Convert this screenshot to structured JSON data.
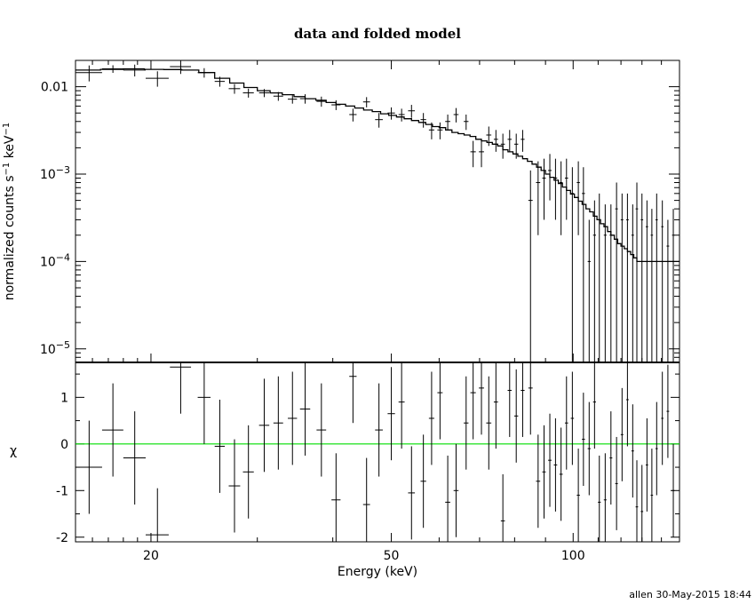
{
  "footer_text": "allen 30-May-2015 18:44",
  "chart_data": [
    {
      "type": "line",
      "panel": "top",
      "title": "data and folded model",
      "ylabel": "normalized counts s^-1 keV^-1",
      "yscale": "log",
      "xscale": "log",
      "xlim": [
        15,
        150
      ],
      "ylim": [
        7e-06,
        0.02
      ],
      "ytick_labels": [
        {
          "value": 0.01,
          "base": "0.01",
          "exp": ""
        },
        {
          "value": 0.001,
          "base": "10",
          "exp": "−3"
        },
        {
          "value": 0.0001,
          "base": "10",
          "exp": "−4"
        },
        {
          "value": 1e-05,
          "base": "10",
          "exp": "−5"
        }
      ],
      "data_points": [
        [
          15.8,
          0.0145,
          0.8,
          0.003
        ],
        [
          17.3,
          0.016,
          0.7,
          0.0016
        ],
        [
          18.8,
          0.0155,
          0.8,
          0.0024
        ],
        [
          20.5,
          0.0125,
          0.9,
          0.0025
        ],
        [
          22.4,
          0.017,
          0.9,
          0.003
        ],
        [
          24.5,
          0.0145,
          0.6,
          0.0018
        ],
        [
          26.0,
          0.0115,
          0.5,
          0.0015
        ],
        [
          27.5,
          0.0095,
          0.6,
          0.0012
        ],
        [
          29.0,
          0.0085,
          0.6,
          0.001
        ],
        [
          30.8,
          0.0085,
          0.6,
          0.0009
        ],
        [
          32.5,
          0.0078,
          0.6,
          0.0009
        ],
        [
          34.3,
          0.0072,
          0.6,
          0.0008
        ],
        [
          36.0,
          0.0073,
          0.7,
          0.0009
        ],
        [
          38.3,
          0.0068,
          0.7,
          0.0009
        ],
        [
          40.5,
          0.0062,
          0.7,
          0.0008
        ],
        [
          43.2,
          0.0048,
          0.6,
          0.0008
        ],
        [
          45.5,
          0.0067,
          0.6,
          0.0009
        ],
        [
          47.7,
          0.0042,
          0.7,
          0.0008
        ],
        [
          50.0,
          0.005,
          0.7,
          0.0008
        ],
        [
          52.0,
          0.0048,
          0.6,
          0.0008
        ],
        [
          54.0,
          0.0053,
          0.7,
          0.0009
        ],
        [
          56.5,
          0.0042,
          0.6,
          0.0008
        ],
        [
          58.3,
          0.0032,
          0.6,
          0.0007
        ],
        [
          60.2,
          0.0032,
          0.6,
          0.0007
        ],
        [
          62.0,
          0.004,
          0.6,
          0.0008
        ],
        [
          64.0,
          0.0048,
          0.6,
          0.0009
        ],
        [
          66.5,
          0.004,
          0.6,
          0.0008
        ],
        [
          68.3,
          0.0018,
          0.7,
          0.0006
        ],
        [
          70.5,
          0.0018,
          0.7,
          0.0006
        ],
        [
          72.5,
          0.0028,
          0.7,
          0.0007
        ],
        [
          74.5,
          0.0025,
          0.6,
          0.0007
        ],
        [
          76.5,
          0.0022,
          0.6,
          0.0007
        ],
        [
          78.5,
          0.0025,
          0.6,
          0.0007
        ],
        [
          80.5,
          0.0022,
          0.6,
          0.0007
        ],
        [
          82.5,
          0.0025,
          0.6,
          0.0007
        ],
        [
          85.0,
          0.0005,
          0.7,
          0.0006
        ],
        [
          87.5,
          0.0008,
          0.7,
          0.0006
        ],
        [
          89.5,
          0.0009,
          0.6,
          0.0006
        ],
        [
          91.5,
          0.0011,
          0.6,
          0.0006
        ],
        [
          93.5,
          0.0009,
          0.6,
          0.0006
        ],
        [
          95.5,
          0.0008,
          0.6,
          0.0006
        ],
        [
          97.5,
          0.0009,
          0.6,
          0.0006
        ],
        [
          99.7,
          0.0006,
          0.6,
          0.0006
        ],
        [
          102.0,
          0.0008,
          0.6,
          0.0006
        ],
        [
          104.0,
          0.0006,
          0.6,
          0.0006
        ],
        [
          106.3,
          0.0001,
          0.6,
          0.0002
        ],
        [
          108.5,
          0.0002,
          0.6,
          0.0003
        ],
        [
          110.5,
          0.0003,
          0.6,
          0.0003
        ],
        [
          113.0,
          0.0002,
          0.6,
          0.00025
        ],
        [
          115.5,
          0.0002,
          0.6,
          0.00025
        ],
        [
          118.0,
          0.0004,
          0.6,
          0.0004
        ],
        [
          120.5,
          0.0003,
          0.6,
          0.0003
        ],
        [
          123.0,
          0.0003,
          0.6,
          0.0003
        ],
        [
          125.5,
          0.0002,
          0.6,
          0.00025
        ],
        [
          127.5,
          0.0004,
          0.6,
          0.0004
        ],
        [
          130.0,
          0.0003,
          0.6,
          0.0003
        ],
        [
          132.5,
          0.00025,
          0.6,
          0.00025
        ],
        [
          135.0,
          0.0002,
          0.6,
          0.0002
        ],
        [
          137.5,
          0.0003,
          0.6,
          0.0003
        ],
        [
          140.5,
          0.00025,
          0.6,
          0.00025
        ],
        [
          143.5,
          0.00015,
          0.7,
          0.00015
        ],
        [
          146.5,
          0.0002,
          0.7,
          0.0002
        ]
      ],
      "model_steps": [
        [
          15,
          0.0155
        ],
        [
          16.5,
          0.0158
        ],
        [
          18,
          0.016
        ],
        [
          19.5,
          0.0158
        ],
        [
          21,
          0.0157
        ],
        [
          22.5,
          0.0155
        ],
        [
          24,
          0.0145
        ],
        [
          25.5,
          0.0125
        ],
        [
          27,
          0.011
        ],
        [
          28.5,
          0.0098
        ],
        [
          30,
          0.009
        ],
        [
          31.5,
          0.0085
        ],
        [
          33,
          0.0081
        ],
        [
          34.5,
          0.0077
        ],
        [
          36,
          0.0073
        ],
        [
          37.5,
          0.007
        ],
        [
          39,
          0.0066
        ],
        [
          40.5,
          0.0063
        ],
        [
          42,
          0.006
        ],
        [
          43.5,
          0.0057
        ],
        [
          45,
          0.0054
        ],
        [
          46.5,
          0.0052
        ],
        [
          48,
          0.0049
        ],
        [
          49.5,
          0.0047
        ],
        [
          51,
          0.0045
        ],
        [
          52.5,
          0.0043
        ],
        [
          54,
          0.0041
        ],
        [
          55.5,
          0.0039
        ],
        [
          57,
          0.0037
        ],
        [
          58.5,
          0.0035
        ],
        [
          60,
          0.0034
        ],
        [
          61.5,
          0.0032
        ],
        [
          63,
          0.003
        ],
        [
          64.5,
          0.0029
        ],
        [
          66,
          0.0028
        ],
        [
          67.5,
          0.0027
        ],
        [
          69,
          0.0025
        ],
        [
          70.5,
          0.0024
        ],
        [
          72,
          0.0023
        ],
        [
          73.5,
          0.0022
        ],
        [
          75,
          0.0021
        ],
        [
          76.5,
          0.0019
        ],
        [
          78,
          0.0018
        ],
        [
          79.5,
          0.0017
        ],
        [
          81,
          0.0016
        ],
        [
          82.5,
          0.0015
        ],
        [
          84,
          0.0014
        ],
        [
          85.5,
          0.0013
        ],
        [
          87,
          0.0012
        ],
        [
          88.5,
          0.0011
        ],
        [
          90,
          0.001
        ],
        [
          91.5,
          0.00092
        ],
        [
          93,
          0.00085
        ],
        [
          94.5,
          0.00078
        ],
        [
          96,
          0.00071
        ],
        [
          97.5,
          0.00065
        ],
        [
          99,
          0.00059
        ],
        [
          100.5,
          0.00054
        ],
        [
          102,
          0.00049
        ],
        [
          103.5,
          0.00045
        ],
        [
          105,
          0.0004
        ],
        [
          106.5,
          0.00037
        ],
        [
          108,
          0.00033
        ],
        [
          109.5,
          0.0003
        ],
        [
          111,
          0.00027
        ],
        [
          112.5,
          0.00025
        ],
        [
          114,
          0.00022
        ],
        [
          115.5,
          0.0002
        ],
        [
          117,
          0.00018
        ],
        [
          118.5,
          0.00016
        ],
        [
          120,
          0.00015
        ],
        [
          121.5,
          0.00014
        ],
        [
          123,
          0.00013
        ],
        [
          124.5,
          0.00012
        ],
        [
          126,
          0.00011
        ],
        [
          127.5,
          0.0001
        ],
        [
          150,
          0.0001
        ]
      ]
    },
    {
      "type": "scatter",
      "panel": "bottom",
      "ylabel": "χ",
      "xlabel": "Energy (keV)",
      "xscale": "log",
      "xlim": [
        15,
        150
      ],
      "ylim": [
        -2.1,
        1.75
      ],
      "yticks": [
        -2,
        -1,
        0,
        1
      ],
      "xticks": [
        20,
        50,
        100
      ],
      "zero_line_color": "#00dd00",
      "residuals": [
        [
          15.8,
          -0.5,
          0.8,
          1.0
        ],
        [
          17.3,
          0.3,
          0.7,
          1.0
        ],
        [
          18.8,
          -0.3,
          0.8,
          1.0
        ],
        [
          20.5,
          -1.95,
          0.9,
          1.0
        ],
        [
          22.4,
          1.65,
          0.9,
          1.0
        ],
        [
          24.5,
          1.0,
          0.6,
          1.0
        ],
        [
          26.0,
          -0.05,
          0.5,
          1.0
        ],
        [
          27.5,
          -0.9,
          0.6,
          1.0
        ],
        [
          29.0,
          -0.6,
          0.6,
          1.0
        ],
        [
          30.8,
          0.4,
          0.6,
          1.0
        ],
        [
          32.5,
          0.45,
          0.6,
          1.0
        ],
        [
          34.3,
          0.55,
          0.6,
          1.0
        ],
        [
          36.0,
          0.75,
          0.7,
          1.0
        ],
        [
          38.3,
          0.3,
          0.7,
          1.0
        ],
        [
          40.5,
          -1.2,
          0.7,
          1.0
        ],
        [
          43.2,
          1.45,
          0.6,
          1.0
        ],
        [
          45.5,
          -1.3,
          0.6,
          1.0
        ],
        [
          47.7,
          0.3,
          0.7,
          1.0
        ],
        [
          50.0,
          0.65,
          0.7,
          1.0
        ],
        [
          52.0,
          0.9,
          0.6,
          1.0
        ],
        [
          54.0,
          -1.05,
          0.7,
          1.0
        ],
        [
          56.5,
          -0.8,
          0.6,
          1.0
        ],
        [
          58.3,
          0.55,
          0.6,
          1.0
        ],
        [
          60.2,
          1.1,
          0.6,
          1.0
        ],
        [
          62.0,
          -1.25,
          0.6,
          1.0
        ],
        [
          64.0,
          -1.0,
          0.6,
          1.0
        ],
        [
          66.5,
          0.45,
          0.6,
          1.0
        ],
        [
          68.3,
          1.1,
          0.7,
          1.0
        ],
        [
          70.5,
          1.2,
          0.7,
          1.0
        ],
        [
          72.5,
          0.45,
          0.7,
          1.0
        ],
        [
          74.5,
          0.9,
          0.6,
          1.0
        ],
        [
          76.5,
          -1.65,
          0.6,
          1.0
        ],
        [
          78.5,
          1.15,
          0.6,
          1.0
        ],
        [
          80.5,
          0.6,
          0.6,
          1.0
        ],
        [
          82.5,
          1.15,
          0.6,
          1.0
        ],
        [
          85.0,
          1.2,
          0.7,
          1.0
        ],
        [
          87.5,
          -0.8,
          0.7,
          1.0
        ],
        [
          89.5,
          -0.6,
          0.6,
          1.0
        ],
        [
          91.5,
          -0.35,
          0.6,
          1.0
        ],
        [
          93.5,
          -0.45,
          0.6,
          1.0
        ],
        [
          95.5,
          -0.65,
          0.6,
          1.0
        ],
        [
          97.5,
          0.45,
          0.6,
          1.0
        ],
        [
          99.7,
          0.55,
          0.6,
          1.0
        ],
        [
          102.0,
          -1.1,
          0.6,
          1.0
        ],
        [
          104.0,
          0.1,
          0.6,
          1.0
        ],
        [
          106.3,
          -0.1,
          0.6,
          1.0
        ],
        [
          108.5,
          0.9,
          0.6,
          1.0
        ],
        [
          110.5,
          -1.25,
          0.6,
          1.0
        ],
        [
          113.0,
          -1.2,
          0.6,
          1.0
        ],
        [
          115.5,
          -0.3,
          0.6,
          1.0
        ],
        [
          118.0,
          -0.85,
          0.6,
          1.0
        ],
        [
          120.5,
          0.2,
          0.6,
          1.0
        ],
        [
          123.0,
          0.95,
          0.6,
          1.0
        ],
        [
          125.5,
          -0.15,
          0.6,
          1.0
        ],
        [
          127.5,
          -1.35,
          0.6,
          1.0
        ],
        [
          130.0,
          -1.45,
          0.6,
          1.0
        ],
        [
          132.5,
          -0.45,
          0.6,
          1.0
        ],
        [
          135.0,
          -1.1,
          0.6,
          1.0
        ],
        [
          137.5,
          -0.1,
          0.6,
          1.0
        ],
        [
          140.5,
          0.55,
          0.6,
          1.0
        ],
        [
          143.5,
          0.7,
          0.7,
          1.0
        ],
        [
          146.5,
          -1.0,
          0.7,
          1.0
        ]
      ]
    }
  ]
}
